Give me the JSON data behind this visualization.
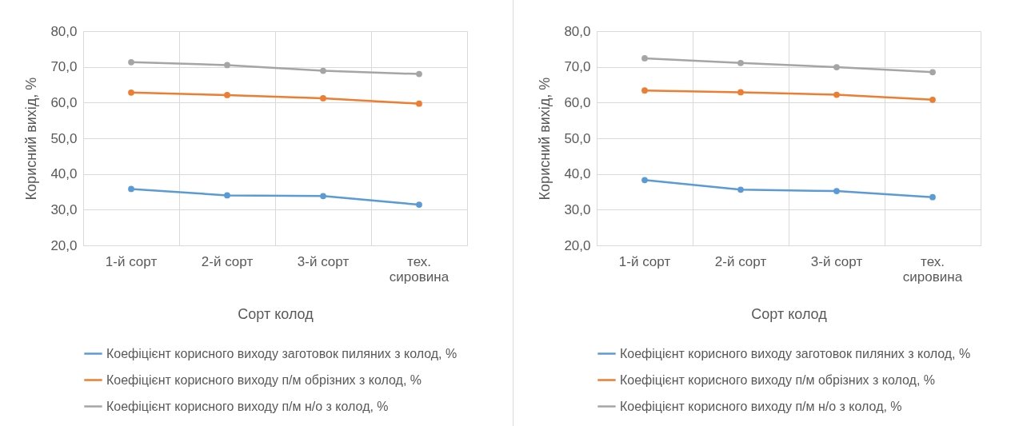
{
  "chart_data": [
    {
      "type": "line",
      "xlabel": "Сорт колод",
      "ylabel": "Корисний вихід, %",
      "categories": [
        "1-й сорт",
        "2-й сорт",
        "3-й сорт",
        "тех. сировина"
      ],
      "ylim": [
        20,
        80
      ],
      "yticks": [
        {
          "value": 20,
          "label": "20,0"
        },
        {
          "value": 30,
          "label": "30,0"
        },
        {
          "value": 40,
          "label": "40,0"
        },
        {
          "value": 50,
          "label": "50,0"
        },
        {
          "value": 60,
          "label": "60,0"
        },
        {
          "value": 70,
          "label": "70,0"
        },
        {
          "value": 80,
          "label": "80,0"
        }
      ],
      "grid": true,
      "legend": "bottom",
      "marker": "circle",
      "line_style": "solid",
      "series": [
        {
          "name": "Коефіцієнт корисного виходу заготовок пиляних з колод, %",
          "color": "#5b9bd5",
          "values": [
            35.8,
            34.0,
            33.8,
            31.4
          ]
        },
        {
          "name": "Коефіцієнт корисного виходу п/м обрізних з колод, %",
          "color": "#ed7d31",
          "values": [
            62.8,
            62.1,
            61.2,
            59.7
          ]
        },
        {
          "name": "Коефіцієнт корисного виходу п/м н/о з колод, %",
          "color": "#a5a5a5",
          "values": [
            71.3,
            70.5,
            68.9,
            68.0
          ]
        }
      ]
    },
    {
      "type": "line",
      "xlabel": "Сорт колод",
      "ylabel": "Корисний вихід, %",
      "categories": [
        "1-й сорт",
        "2-й сорт",
        "3-й сорт",
        "тех. сировина"
      ],
      "ylim": [
        20,
        80
      ],
      "yticks": [
        {
          "value": 20,
          "label": "20,0"
        },
        {
          "value": 30,
          "label": "30,0"
        },
        {
          "value": 40,
          "label": "40,0"
        },
        {
          "value": 50,
          "label": "50,0"
        },
        {
          "value": 60,
          "label": "60,0"
        },
        {
          "value": 70,
          "label": "70,0"
        },
        {
          "value": 80,
          "label": "80,0"
        }
      ],
      "grid": true,
      "legend": "bottom",
      "marker": "circle",
      "line_style": "solid",
      "series": [
        {
          "name": "Коефіцієнт корисного виходу заготовок пиляних з колод, %",
          "color": "#5b9bd5",
          "values": [
            38.3,
            35.6,
            35.2,
            33.5
          ]
        },
        {
          "name": "Коефіцієнт корисного виходу п/м обрізних з колод, %",
          "color": "#ed7d31",
          "values": [
            63.4,
            62.9,
            62.2,
            60.8
          ]
        },
        {
          "name": "Коефіцієнт корисного виходу п/м н/о з колод, %",
          "color": "#a5a5a5",
          "values": [
            72.4,
            71.1,
            69.9,
            68.5
          ]
        }
      ]
    }
  ]
}
